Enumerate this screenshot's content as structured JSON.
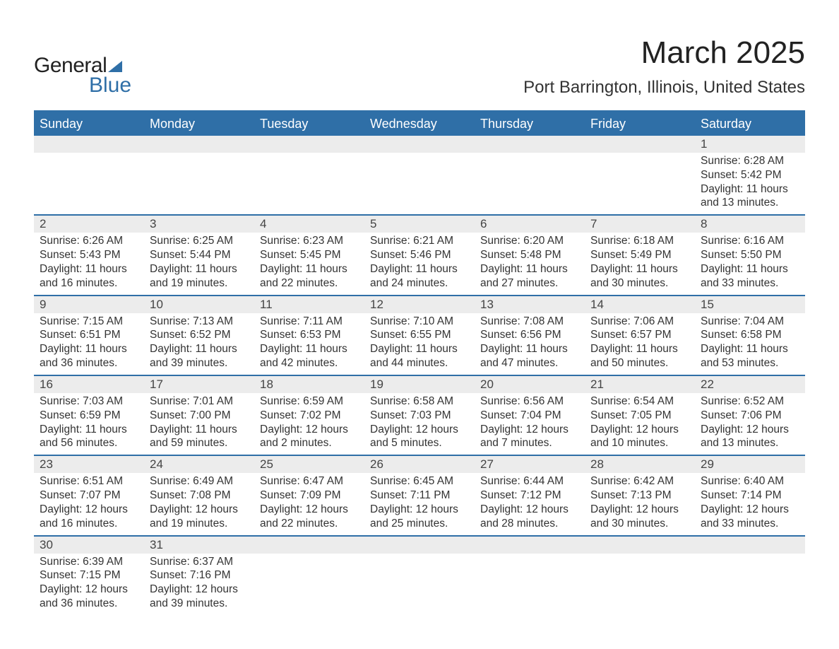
{
  "brand": {
    "line1": "General",
    "line2": "Blue"
  },
  "title": "March 2025",
  "location": "Port Barrington, Illinois, United States",
  "colors": {
    "header_bg": "#2f6fa7",
    "header_text": "#ffffff",
    "row_border": "#2f6fa7",
    "daynum_bg": "#ececec",
    "body_text": "#333333",
    "page_bg": "#ffffff"
  },
  "typography": {
    "title_fontsize": 44,
    "location_fontsize": 24,
    "dayheader_fontsize": 18,
    "cell_fontsize": 15.5
  },
  "day_names": [
    "Sunday",
    "Monday",
    "Tuesday",
    "Wednesday",
    "Thursday",
    "Friday",
    "Saturday"
  ],
  "weeks": [
    [
      {
        "n": "",
        "sunrise": "",
        "sunset": "",
        "daylight": ""
      },
      {
        "n": "",
        "sunrise": "",
        "sunset": "",
        "daylight": ""
      },
      {
        "n": "",
        "sunrise": "",
        "sunset": "",
        "daylight": ""
      },
      {
        "n": "",
        "sunrise": "",
        "sunset": "",
        "daylight": ""
      },
      {
        "n": "",
        "sunrise": "",
        "sunset": "",
        "daylight": ""
      },
      {
        "n": "",
        "sunrise": "",
        "sunset": "",
        "daylight": ""
      },
      {
        "n": "1",
        "sunrise": "Sunrise: 6:28 AM",
        "sunset": "Sunset: 5:42 PM",
        "daylight": "Daylight: 11 hours and 13 minutes."
      }
    ],
    [
      {
        "n": "2",
        "sunrise": "Sunrise: 6:26 AM",
        "sunset": "Sunset: 5:43 PM",
        "daylight": "Daylight: 11 hours and 16 minutes."
      },
      {
        "n": "3",
        "sunrise": "Sunrise: 6:25 AM",
        "sunset": "Sunset: 5:44 PM",
        "daylight": "Daylight: 11 hours and 19 minutes."
      },
      {
        "n": "4",
        "sunrise": "Sunrise: 6:23 AM",
        "sunset": "Sunset: 5:45 PM",
        "daylight": "Daylight: 11 hours and 22 minutes."
      },
      {
        "n": "5",
        "sunrise": "Sunrise: 6:21 AM",
        "sunset": "Sunset: 5:46 PM",
        "daylight": "Daylight: 11 hours and 24 minutes."
      },
      {
        "n": "6",
        "sunrise": "Sunrise: 6:20 AM",
        "sunset": "Sunset: 5:48 PM",
        "daylight": "Daylight: 11 hours and 27 minutes."
      },
      {
        "n": "7",
        "sunrise": "Sunrise: 6:18 AM",
        "sunset": "Sunset: 5:49 PM",
        "daylight": "Daylight: 11 hours and 30 minutes."
      },
      {
        "n": "8",
        "sunrise": "Sunrise: 6:16 AM",
        "sunset": "Sunset: 5:50 PM",
        "daylight": "Daylight: 11 hours and 33 minutes."
      }
    ],
    [
      {
        "n": "9",
        "sunrise": "Sunrise: 7:15 AM",
        "sunset": "Sunset: 6:51 PM",
        "daylight": "Daylight: 11 hours and 36 minutes."
      },
      {
        "n": "10",
        "sunrise": "Sunrise: 7:13 AM",
        "sunset": "Sunset: 6:52 PM",
        "daylight": "Daylight: 11 hours and 39 minutes."
      },
      {
        "n": "11",
        "sunrise": "Sunrise: 7:11 AM",
        "sunset": "Sunset: 6:53 PM",
        "daylight": "Daylight: 11 hours and 42 minutes."
      },
      {
        "n": "12",
        "sunrise": "Sunrise: 7:10 AM",
        "sunset": "Sunset: 6:55 PM",
        "daylight": "Daylight: 11 hours and 44 minutes."
      },
      {
        "n": "13",
        "sunrise": "Sunrise: 7:08 AM",
        "sunset": "Sunset: 6:56 PM",
        "daylight": "Daylight: 11 hours and 47 minutes."
      },
      {
        "n": "14",
        "sunrise": "Sunrise: 7:06 AM",
        "sunset": "Sunset: 6:57 PM",
        "daylight": "Daylight: 11 hours and 50 minutes."
      },
      {
        "n": "15",
        "sunrise": "Sunrise: 7:04 AM",
        "sunset": "Sunset: 6:58 PM",
        "daylight": "Daylight: 11 hours and 53 minutes."
      }
    ],
    [
      {
        "n": "16",
        "sunrise": "Sunrise: 7:03 AM",
        "sunset": "Sunset: 6:59 PM",
        "daylight": "Daylight: 11 hours and 56 minutes."
      },
      {
        "n": "17",
        "sunrise": "Sunrise: 7:01 AM",
        "sunset": "Sunset: 7:00 PM",
        "daylight": "Daylight: 11 hours and 59 minutes."
      },
      {
        "n": "18",
        "sunrise": "Sunrise: 6:59 AM",
        "sunset": "Sunset: 7:02 PM",
        "daylight": "Daylight: 12 hours and 2 minutes."
      },
      {
        "n": "19",
        "sunrise": "Sunrise: 6:58 AM",
        "sunset": "Sunset: 7:03 PM",
        "daylight": "Daylight: 12 hours and 5 minutes."
      },
      {
        "n": "20",
        "sunrise": "Sunrise: 6:56 AM",
        "sunset": "Sunset: 7:04 PM",
        "daylight": "Daylight: 12 hours and 7 minutes."
      },
      {
        "n": "21",
        "sunrise": "Sunrise: 6:54 AM",
        "sunset": "Sunset: 7:05 PM",
        "daylight": "Daylight: 12 hours and 10 minutes."
      },
      {
        "n": "22",
        "sunrise": "Sunrise: 6:52 AM",
        "sunset": "Sunset: 7:06 PM",
        "daylight": "Daylight: 12 hours and 13 minutes."
      }
    ],
    [
      {
        "n": "23",
        "sunrise": "Sunrise: 6:51 AM",
        "sunset": "Sunset: 7:07 PM",
        "daylight": "Daylight: 12 hours and 16 minutes."
      },
      {
        "n": "24",
        "sunrise": "Sunrise: 6:49 AM",
        "sunset": "Sunset: 7:08 PM",
        "daylight": "Daylight: 12 hours and 19 minutes."
      },
      {
        "n": "25",
        "sunrise": "Sunrise: 6:47 AM",
        "sunset": "Sunset: 7:09 PM",
        "daylight": "Daylight: 12 hours and 22 minutes."
      },
      {
        "n": "26",
        "sunrise": "Sunrise: 6:45 AM",
        "sunset": "Sunset: 7:11 PM",
        "daylight": "Daylight: 12 hours and 25 minutes."
      },
      {
        "n": "27",
        "sunrise": "Sunrise: 6:44 AM",
        "sunset": "Sunset: 7:12 PM",
        "daylight": "Daylight: 12 hours and 28 minutes."
      },
      {
        "n": "28",
        "sunrise": "Sunrise: 6:42 AM",
        "sunset": "Sunset: 7:13 PM",
        "daylight": "Daylight: 12 hours and 30 minutes."
      },
      {
        "n": "29",
        "sunrise": "Sunrise: 6:40 AM",
        "sunset": "Sunset: 7:14 PM",
        "daylight": "Daylight: 12 hours and 33 minutes."
      }
    ],
    [
      {
        "n": "30",
        "sunrise": "Sunrise: 6:39 AM",
        "sunset": "Sunset: 7:15 PM",
        "daylight": "Daylight: 12 hours and 36 minutes."
      },
      {
        "n": "31",
        "sunrise": "Sunrise: 6:37 AM",
        "sunset": "Sunset: 7:16 PM",
        "daylight": "Daylight: 12 hours and 39 minutes."
      },
      {
        "n": "",
        "sunrise": "",
        "sunset": "",
        "daylight": ""
      },
      {
        "n": "",
        "sunrise": "",
        "sunset": "",
        "daylight": ""
      },
      {
        "n": "",
        "sunrise": "",
        "sunset": "",
        "daylight": ""
      },
      {
        "n": "",
        "sunrise": "",
        "sunset": "",
        "daylight": ""
      },
      {
        "n": "",
        "sunrise": "",
        "sunset": "",
        "daylight": ""
      }
    ]
  ]
}
